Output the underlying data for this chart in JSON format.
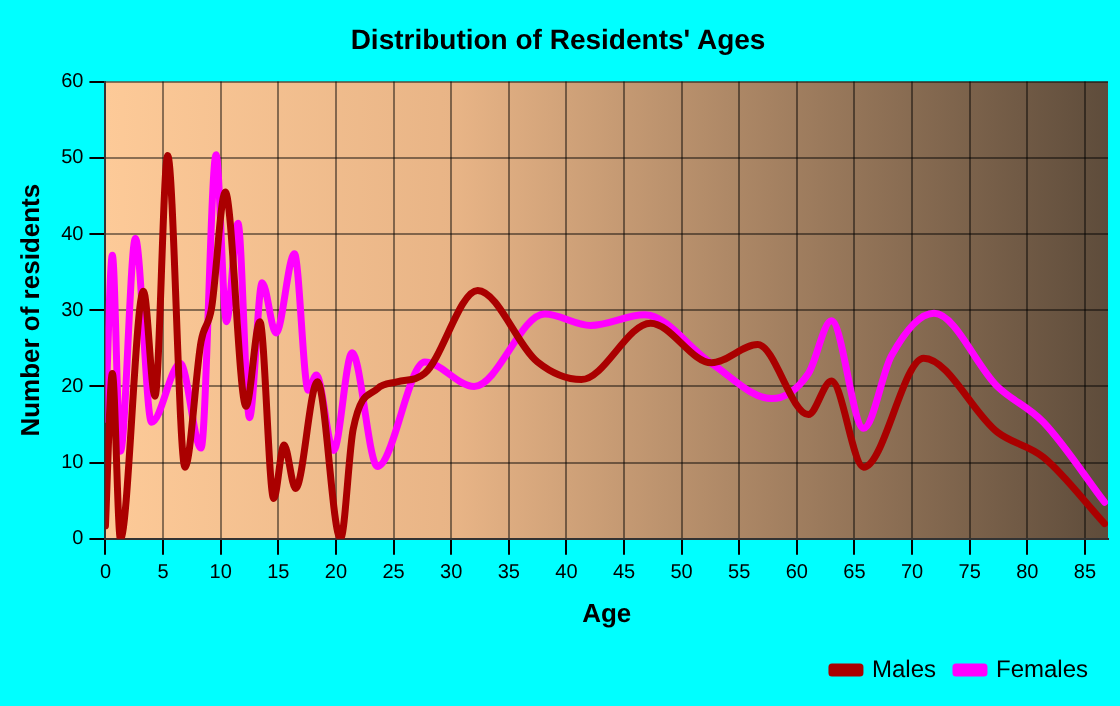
{
  "chart_data": {
    "type": "line",
    "title": "Distribution of Residents' Ages",
    "xlabel": "Age",
    "ylabel": "Number of residents",
    "xlim": [
      0,
      87
    ],
    "xticks": [
      0,
      5,
      10,
      15,
      20,
      25,
      30,
      35,
      40,
      45,
      50,
      55,
      60,
      65,
      70,
      75,
      80,
      85
    ],
    "ylim": [
      0,
      60
    ],
    "yticks": [
      0,
      10,
      20,
      30,
      40,
      50,
      60
    ],
    "grid": true,
    "legend": "bottom right",
    "marker": "none",
    "line_style": "solid",
    "series": [
      {
        "name": "Males",
        "color": "#aa0000",
        "x": [
          0,
          0.6,
          1.3,
          3.3,
          4.3,
          5.4,
          6.9,
          8.3,
          9.2,
          10.4,
          12.2,
          13.4,
          14.6,
          15.5,
          16.5,
          18.4,
          20.4,
          21.5,
          23.6,
          25.3,
          27.7,
          32.3,
          37.5,
          41.3,
          47.3,
          52.6,
          56.6,
          61,
          63,
          65.8,
          71,
          77.4,
          81.4,
          86.7
        ],
        "values": [
          1.7,
          21.7,
          0,
          32.5,
          18.7,
          50.3,
          9.4,
          25.9,
          30.2,
          45.5,
          17.4,
          28.5,
          5.3,
          12.3,
          6.6,
          20.6,
          0,
          14.4,
          19.7,
          20.6,
          21.7,
          32.6,
          23.2,
          20.9,
          28.3,
          23.1,
          25.5,
          16.3,
          20.7,
          9.4,
          23.7,
          14,
          10.7,
          2
        ]
      },
      {
        "name": "Females",
        "color": "#ff00ff",
        "x": [
          0,
          0.6,
          1.3,
          2.6,
          4,
          6.5,
          8.3,
          9.6,
          10.5,
          11.5,
          12.5,
          13.6,
          14.8,
          16.4,
          17.6,
          18.3,
          19.8,
          21.4,
          23.6,
          27.7,
          32,
          38.1,
          42.1,
          46.8,
          52.6,
          57.8,
          61,
          63,
          65.8,
          68.2,
          71.9,
          77.4,
          81.4,
          86.7
        ],
        "values": [
          15.7,
          37.2,
          11.5,
          39.4,
          15.3,
          23,
          11.9,
          50.4,
          28.5,
          41.4,
          15.9,
          33.6,
          27,
          37.4,
          19.5,
          21.5,
          11.6,
          24.4,
          9.5,
          23.2,
          20,
          29.5,
          28,
          29.4,
          23,
          18.4,
          21.7,
          28.6,
          14.5,
          24,
          29.6,
          20,
          15.3,
          4.8
        ]
      }
    ]
  }
}
